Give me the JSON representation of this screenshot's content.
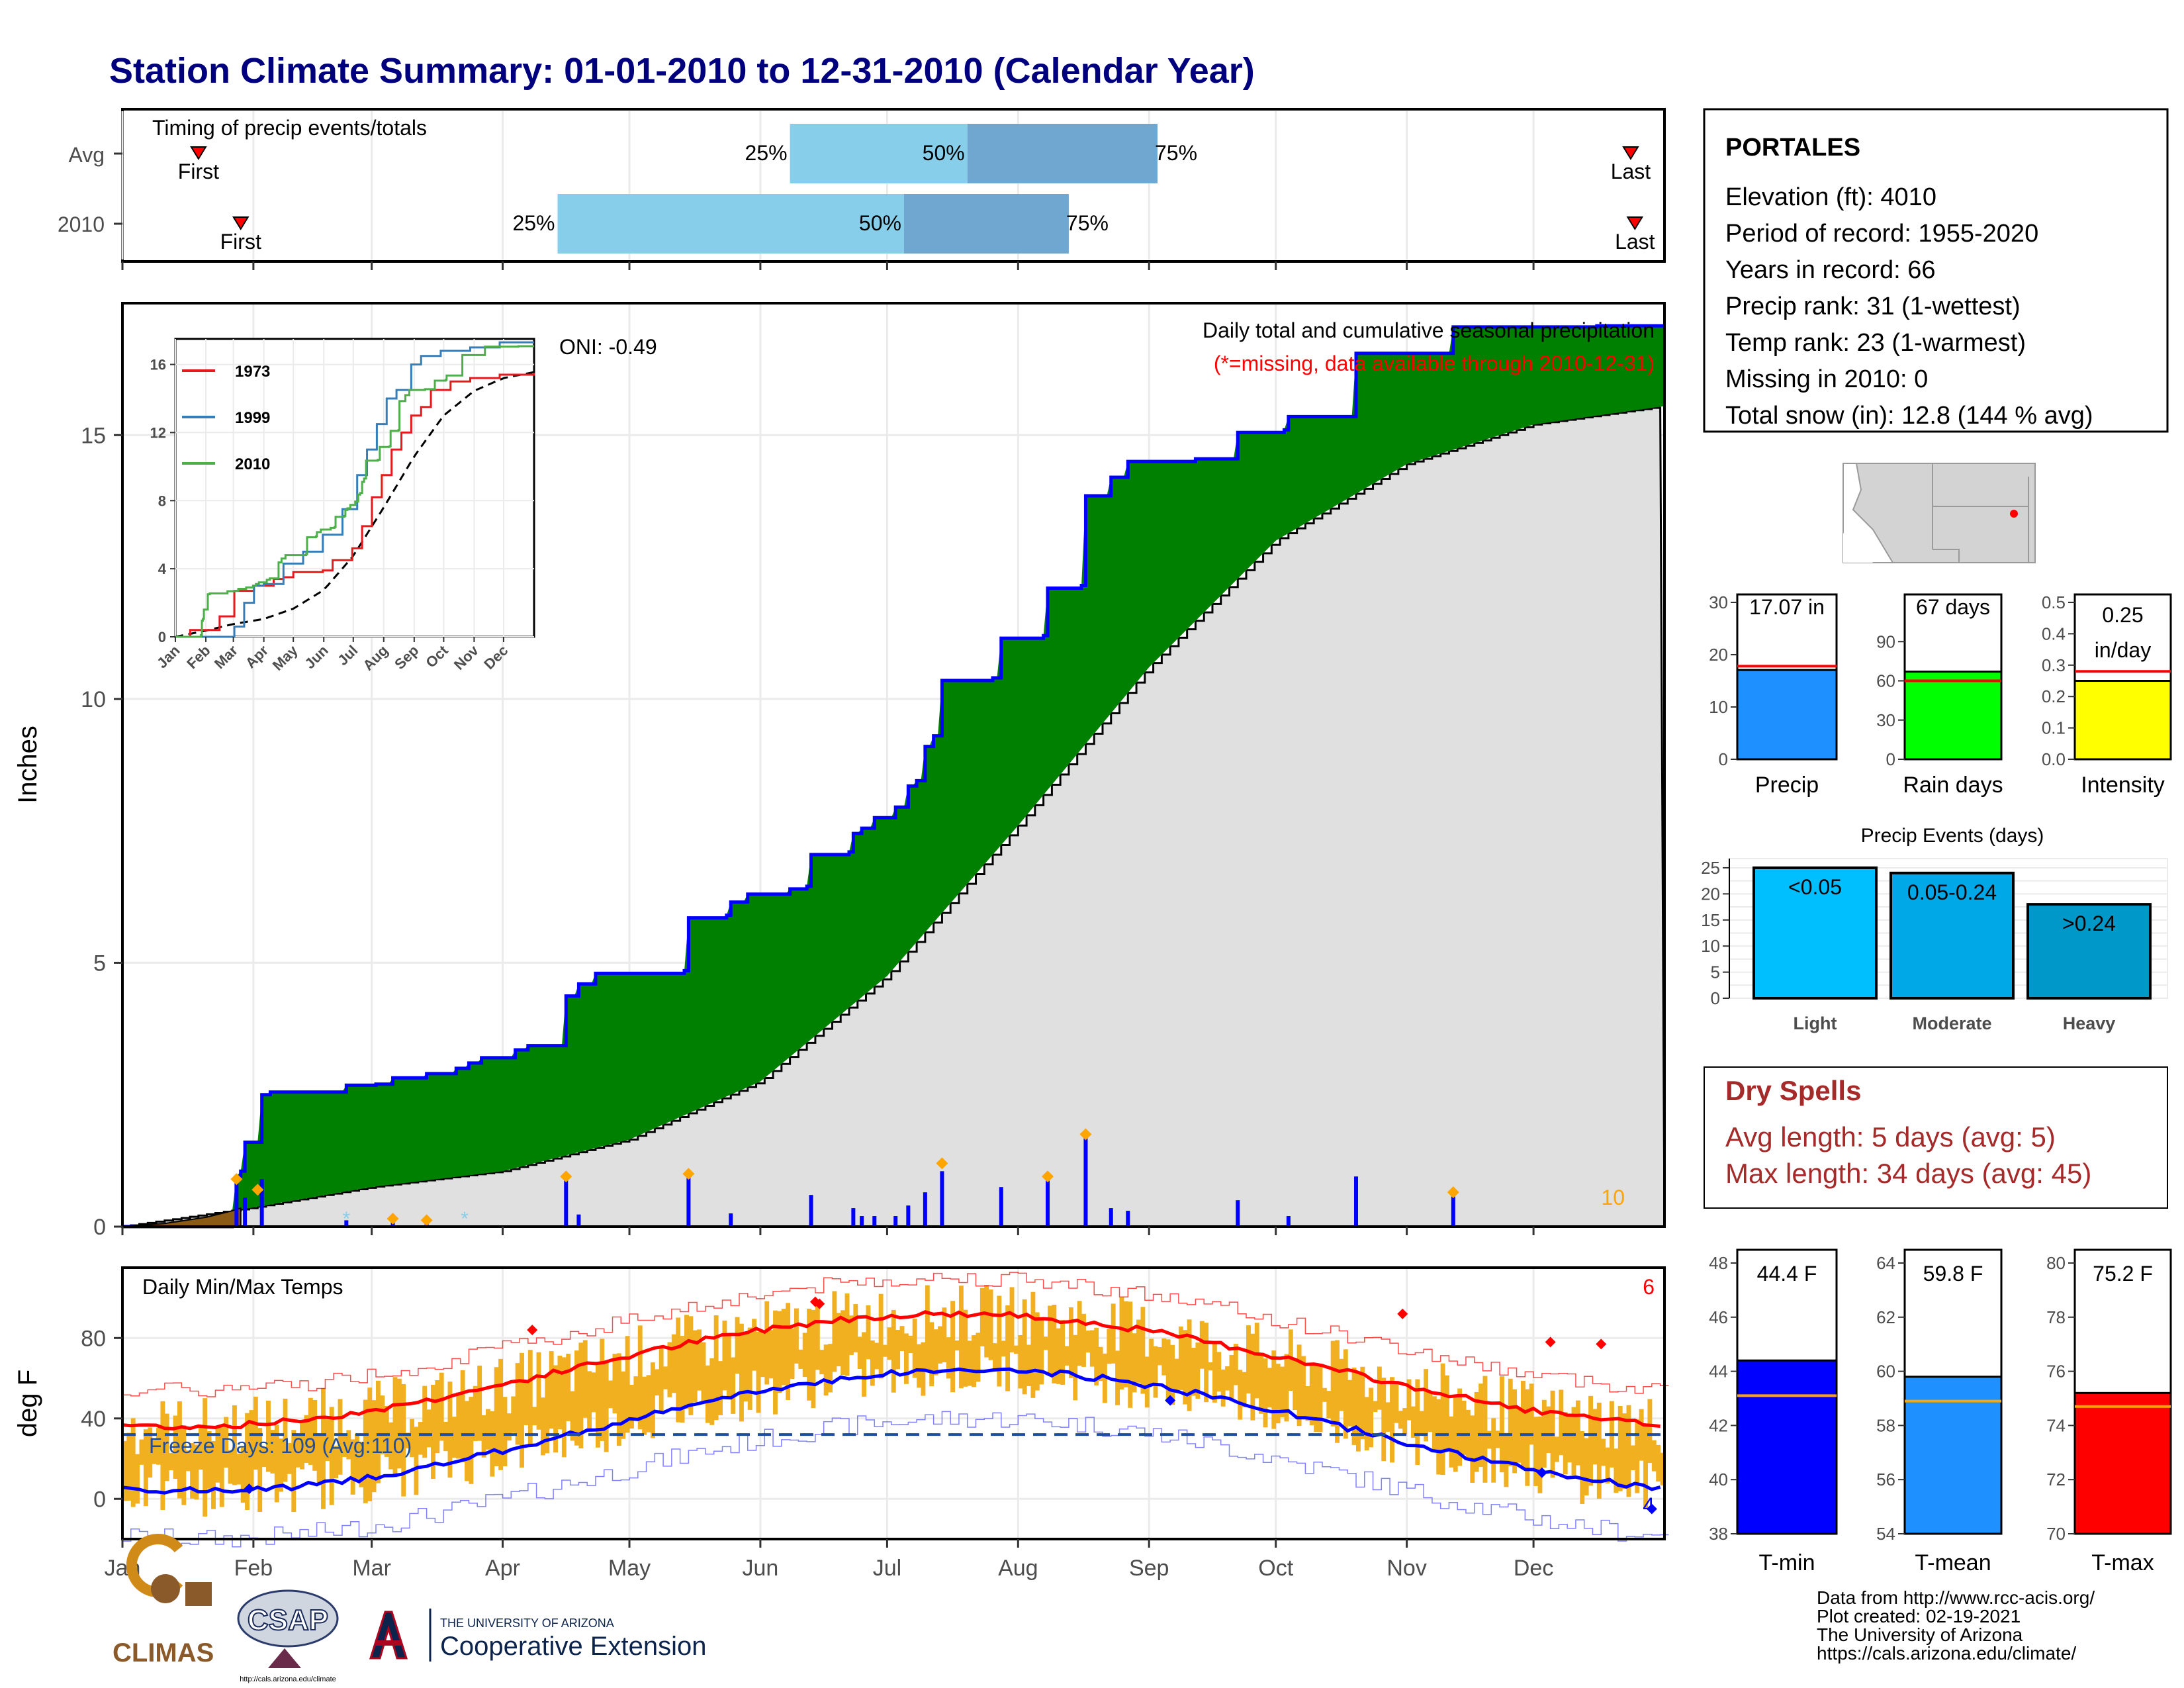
{
  "title": "Station Climate Summary: 01-01-2010 to 12-31-2010 (Calendar Year)",
  "colors": {
    "title": "#00007f",
    "green_fill": "#008000",
    "blue_line": "#0000ff",
    "gray_fill": "#e0e0e0",
    "snow_brown": "#8b5a14",
    "orange": "#ffa500",
    "light_blue": "#87ceeb",
    "mid_blue": "#6fa7d0",
    "tmin": "#0000ff",
    "tmean": "#1e90ff",
    "tmax": "#ff0000",
    "dry_spell": "#a52a2a",
    "rain_days_green": "#00ff00",
    "intensity_yellow": "#ffff00",
    "precip_blue": "#1e90ff",
    "event_light": "#00bfff",
    "event_moderate": "#00a8e8",
    "event_heavy": "#0098c8",
    "bar_orange_temp": "#f0b020"
  },
  "months": [
    "Jan",
    "Feb",
    "Mar",
    "Apr",
    "May",
    "Jun",
    "Jul",
    "Aug",
    "Sep",
    "Oct",
    "Nov",
    "Dec"
  ],
  "timing": {
    "title": "Timing of precip events/totals",
    "rows": [
      {
        "label": "Avg",
        "first": "First",
        "last": "Last",
        "first_day": 18,
        "last_day": 357,
        "p25": 158,
        "p50": 200,
        "p75": 245,
        "p25_label": "25%",
        "p50_label": "50%",
        "p75_label": "75%"
      },
      {
        "label": "2010",
        "first": "First",
        "last": "Last",
        "first_day": 28,
        "last_day": 358,
        "p25": 103,
        "p50": 185,
        "p75": 224,
        "p25_label": "25%",
        "p50_label": "50%",
        "p75_label": "75%"
      }
    ]
  },
  "precip": {
    "ylabel": "Inches",
    "y_ticks": [
      "0",
      "5",
      "10",
      "15"
    ],
    "subtitle": "Daily total and cumulative seasonal precipitation",
    "missing_note": "(*=missing, data available through 2010-12-31)",
    "oni": "ONI: -0.49",
    "count_label": "10"
  },
  "inset": {
    "y_ticks": [
      "0",
      "4",
      "8",
      "12",
      "16"
    ],
    "x_ticks": [
      "Jan",
      "Feb",
      "Mar",
      "Apr",
      "May",
      "Jun",
      "Jul",
      "Aug",
      "Sep",
      "Oct",
      "Nov",
      "Dec"
    ],
    "legend": [
      {
        "name": "1973",
        "color": "#e41a1c"
      },
      {
        "name": "1999",
        "color": "#377eb8"
      },
      {
        "name": "2010",
        "color": "#4daf4a"
      }
    ]
  },
  "temps": {
    "ylabel": "deg F",
    "title": "Daily Min/Max Temps",
    "y_ticks": [
      "0",
      "40",
      "80"
    ],
    "freeze_days": "Freeze Days: 109 (Avg:110)",
    "count_max": "6",
    "count_min": "4"
  },
  "station": {
    "name": "PORTALES",
    "lines": [
      "Elevation (ft): 4010",
      "Period of record: 1955-2020",
      "Years in record: 66",
      "Precip rank: 31 (1-wettest)",
      "Temp rank: 23 (1-warmest)",
      "Missing in 2010: 0",
      "Total snow (in): 12.8 (144 % avg)"
    ]
  },
  "precip_bars": [
    {
      "label": "Precip",
      "value_text": "17.07 in",
      "value": 17.07,
      "avg": 17.8,
      "max": 30,
      "ticks": [
        "0",
        "10",
        "20",
        "30"
      ]
    },
    {
      "label": "Rain days",
      "value_text": "67 days",
      "value": 67,
      "avg": 60,
      "max": 120,
      "ticks": [
        "0",
        "30",
        "60",
        "90"
      ]
    },
    {
      "label": "Intensity",
      "value_text": "0.25",
      "value_text2": "in/day",
      "value": 0.25,
      "avg": 0.28,
      "max": 0.5,
      "ticks": [
        "0.0",
        "0.1",
        "0.2",
        "0.3",
        "0.4",
        "0.5"
      ]
    }
  ],
  "events": {
    "title": "Precip Events (days)",
    "y_ticks": [
      "0",
      "5",
      "10",
      "15",
      "20",
      "25"
    ],
    "bars": [
      {
        "label": "Light",
        "range": "<0.05",
        "value": 25
      },
      {
        "label": "Moderate",
        "range": "0.05-0.24",
        "value": 24
      },
      {
        "label": "Heavy",
        "range": ">0.24",
        "value": 18
      }
    ]
  },
  "dry_spells": {
    "title": "Dry Spells",
    "avg": "Avg length: 5 days (avg: 5)",
    "max": "Max length: 34 days (avg: 45)"
  },
  "temp_bars": [
    {
      "label": "T-min",
      "value_text": "44.4 F",
      "value": 44.4,
      "avg": 43.1,
      "min": 38,
      "max": 48,
      "ticks": [
        "38",
        "40",
        "42",
        "44",
        "46",
        "48"
      ]
    },
    {
      "label": "T-mean",
      "value_text": "59.8 F",
      "value": 59.8,
      "avg": 58.9,
      "min": 54,
      "max": 64,
      "ticks": [
        "54",
        "56",
        "58",
        "60",
        "62",
        "64"
      ]
    },
    {
      "label": "T-max",
      "value_text": "75.2 F",
      "value": 75.2,
      "avg": 74.7,
      "min": 70,
      "max": 80,
      "ticks": [
        "70",
        "72",
        "74",
        "76",
        "78",
        "80"
      ]
    }
  ],
  "logos": {
    "climas": "CLIMAS",
    "csap": "CSAP",
    "csap_url": "http://cals.arizona.edu/climate",
    "ua_small": "THE UNIVERSITY OF ARIZONA",
    "ua_big": "Cooperative Extension"
  },
  "footer": [
    "Data from http://www.rcc-acis.org/",
    "Plot created: 02-19-2021",
    "The University of Arizona",
    "https://cals.arizona.edu/climate/"
  ],
  "chart_data": {
    "type": "area",
    "title": "Daily total and cumulative seasonal precipitation",
    "ylabel": "Inches",
    "ylim": [
      0,
      17.5
    ],
    "xlim_days": [
      0,
      365
    ],
    "cumulative_2010": [
      [
        0,
        0
      ],
      [
        26,
        0.1
      ],
      [
        27,
        0.95
      ],
      [
        28,
        1.05
      ],
      [
        29,
        1.6
      ],
      [
        32,
        1.6
      ],
      [
        33,
        2.5
      ],
      [
        34,
        2.5
      ],
      [
        35,
        2.55
      ],
      [
        52,
        2.55
      ],
      [
        53,
        2.68
      ],
      [
        60,
        2.7
      ],
      [
        64,
        2.82
      ],
      [
        71,
        2.82
      ],
      [
        72,
        2.9
      ],
      [
        79,
        3.0
      ],
      [
        82,
        3.1
      ],
      [
        85,
        3.2
      ],
      [
        93,
        3.35
      ],
      [
        96,
        3.43
      ],
      [
        104,
        3.43
      ],
      [
        105,
        4.37
      ],
      [
        108,
        4.6
      ],
      [
        112,
        4.8
      ],
      [
        133,
        4.85
      ],
      [
        134,
        5.85
      ],
      [
        143,
        5.9
      ],
      [
        144,
        6.15
      ],
      [
        148,
        6.3
      ],
      [
        158,
        6.4
      ],
      [
        162,
        6.45
      ],
      [
        163,
        7.05
      ],
      [
        172,
        7.1
      ],
      [
        173,
        7.45
      ],
      [
        175,
        7.55
      ],
      [
        178,
        7.75
      ],
      [
        183,
        7.95
      ],
      [
        186,
        8.35
      ],
      [
        188,
        8.45
      ],
      [
        190,
        9.1
      ],
      [
        192,
        9.3
      ],
      [
        194,
        10.35
      ],
      [
        206,
        10.4
      ],
      [
        208,
        11.15
      ],
      [
        218,
        11.2
      ],
      [
        219,
        12.1
      ],
      [
        227,
        12.15
      ],
      [
        228,
        13.85
      ],
      [
        234,
        14.2
      ],
      [
        238,
        14.5
      ],
      [
        254,
        14.55
      ],
      [
        264,
        15.05
      ],
      [
        275,
        15.1
      ],
      [
        276,
        15.35
      ],
      [
        292,
        16.55
      ],
      [
        315,
        17.05
      ],
      [
        349,
        17.07
      ],
      [
        365,
        17.07
      ]
    ],
    "normal_cumulative": [
      [
        0,
        0
      ],
      [
        30,
        0.35
      ],
      [
        59,
        0.75
      ],
      [
        90,
        1.05
      ],
      [
        120,
        1.65
      ],
      [
        151,
        2.75
      ],
      [
        181,
        4.75
      ],
      [
        212,
        7.6
      ],
      [
        243,
        10.6
      ],
      [
        273,
        13.0
      ],
      [
        304,
        14.45
      ],
      [
        334,
        15.2
      ],
      [
        365,
        15.55
      ]
    ],
    "daily_2010": [
      [
        27,
        0.85
      ],
      [
        29,
        0.55
      ],
      [
        33,
        0.9
      ],
      [
        53,
        0.12
      ],
      [
        64,
        0.12
      ],
      [
        72,
        0.08
      ],
      [
        105,
        0.95
      ],
      [
        108,
        0.23
      ],
      [
        134,
        1.0
      ],
      [
        144,
        0.25
      ],
      [
        163,
        0.6
      ],
      [
        173,
        0.35
      ],
      [
        175,
        0.2
      ],
      [
        178,
        0.2
      ],
      [
        183,
        0.2
      ],
      [
        186,
        0.4
      ],
      [
        190,
        0.65
      ],
      [
        194,
        1.05
      ],
      [
        208,
        0.75
      ],
      [
        219,
        0.9
      ],
      [
        228,
        1.7
      ],
      [
        234,
        0.35
      ],
      [
        238,
        0.3
      ],
      [
        264,
        0.5
      ],
      [
        276,
        0.2
      ],
      [
        292,
        0.95
      ],
      [
        315,
        0.6
      ]
    ]
  }
}
